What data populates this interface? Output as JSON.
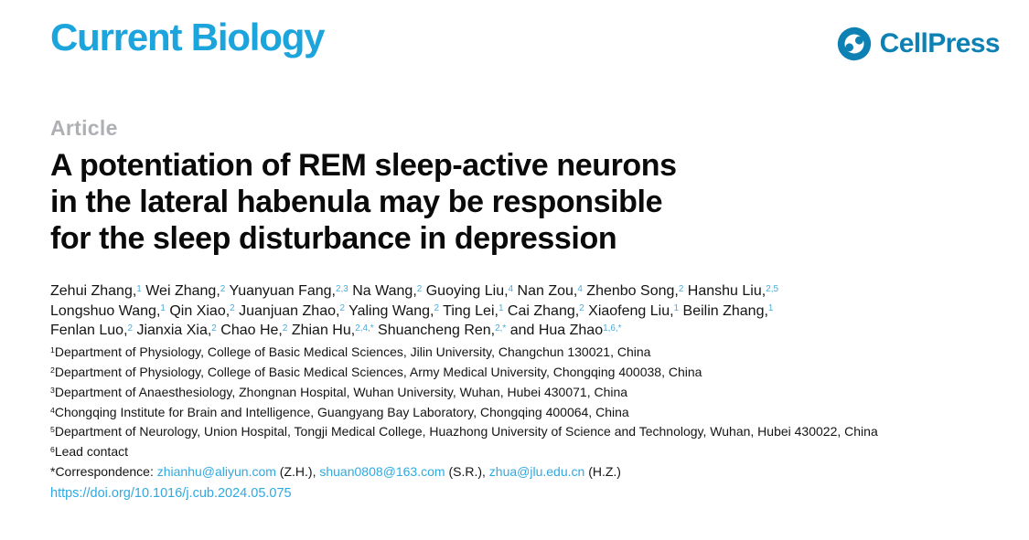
{
  "colors": {
    "brand_cyan": "#1CA4DC",
    "cellpress_blue": "#0E81B4",
    "link_blue": "#2FA9E0",
    "superscript_blue": "#4AACDE",
    "kicker_gray": "#AEB0B3"
  },
  "header": {
    "journal_logo": "Current Biology",
    "publisher_name": "CellPress",
    "publisher_icon": "cellpress-swirl-icon"
  },
  "article": {
    "kicker": "Article",
    "title_lines": [
      "A potentiation of REM sleep-active neurons",
      "in the lateral habenula may be responsible",
      "for the sleep disturbance in depression"
    ]
  },
  "authors": {
    "lines": [
      [
        {
          "name": "Zehui Zhang,",
          "sup": "1"
        },
        {
          "name": " Wei Zhang,",
          "sup": "2"
        },
        {
          "name": " Yuanyuan Fang,",
          "sup": "2,3"
        },
        {
          "name": " Na Wang,",
          "sup": "2"
        },
        {
          "name": " Guoying Liu,",
          "sup": "4"
        },
        {
          "name": " Nan Zou,",
          "sup": "4"
        },
        {
          "name": " Zhenbo Song,",
          "sup": "2"
        },
        {
          "name": " Hanshu Liu,",
          "sup": "2,5"
        }
      ],
      [
        {
          "name": "Longshuo Wang,",
          "sup": "1"
        },
        {
          "name": " Qin Xiao,",
          "sup": "2"
        },
        {
          "name": " Juanjuan Zhao,",
          "sup": "2"
        },
        {
          "name": " Yaling Wang,",
          "sup": "2"
        },
        {
          "name": " Ting Lei,",
          "sup": "1"
        },
        {
          "name": " Cai Zhang,",
          "sup": "2"
        },
        {
          "name": " Xiaofeng Liu,",
          "sup": "1"
        },
        {
          "name": " Beilin Zhang,",
          "sup": "1"
        }
      ],
      [
        {
          "name": "Fenlan Luo,",
          "sup": "2"
        },
        {
          "name": " Jianxia Xia,",
          "sup": "2"
        },
        {
          "name": " Chao He,",
          "sup": "2"
        },
        {
          "name": " Zhian Hu,",
          "sup": "2,4,*"
        },
        {
          "name": " Shuancheng Ren,",
          "sup": "2,*"
        },
        {
          "name": " and Hua Zhao",
          "sup": "1,6,*"
        }
      ]
    ]
  },
  "affiliations": [
    {
      "sup": "1",
      "text": "Department of Physiology, College of Basic Medical Sciences, Jilin University, Changchun 130021, China"
    },
    {
      "sup": "2",
      "text": "Department of Physiology, College of Basic Medical Sciences, Army Medical University, Chongqing 400038, China"
    },
    {
      "sup": "3",
      "text": "Department of Anaesthesiology, Zhongnan Hospital, Wuhan University, Wuhan, Hubei 430071, China"
    },
    {
      "sup": "4",
      "text": "Chongqing Institute for Brain and Intelligence, Guangyang Bay Laboratory, Chongqing 400064, China"
    },
    {
      "sup": "5",
      "text": "Department of Neurology, Union Hospital, Tongji Medical College, Huazhong University of Science and Technology, Wuhan, Hubei 430022, China"
    },
    {
      "sup": "6",
      "text": "Lead contact"
    }
  ],
  "correspondence": {
    "label": "*Correspondence: ",
    "contacts": [
      {
        "email": "zhianhu@aliyun.com",
        "suffix": " (Z.H.), "
      },
      {
        "email": "shuan0808@163.com",
        "suffix": " (S.R.), "
      },
      {
        "email": "zhua@jlu.edu.cn",
        "suffix": " (H.Z.)"
      }
    ]
  },
  "doi": "https://doi.org/10.1016/j.cub.2024.05.075"
}
